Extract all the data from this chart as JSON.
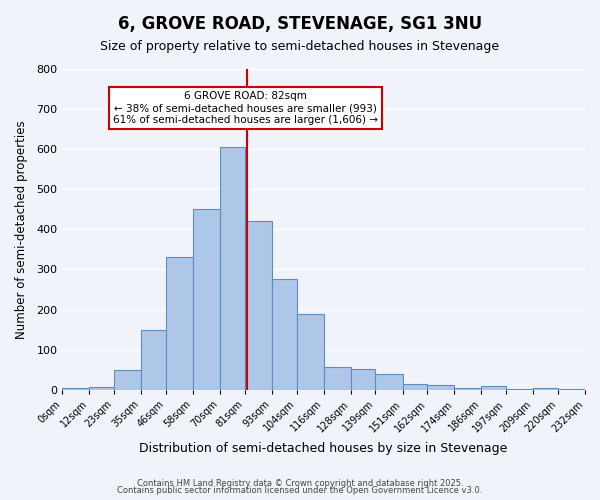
{
  "title": "6, GROVE ROAD, STEVENAGE, SG1 3NU",
  "subtitle": "Size of property relative to semi-detached houses in Stevenage",
  "xlabel": "Distribution of semi-detached houses by size in Stevenage",
  "ylabel": "Number of semi-detached properties",
  "bin_labels": [
    "0sqm",
    "12sqm",
    "23sqm",
    "35sqm",
    "46sqm",
    "58sqm",
    "70sqm",
    "81sqm",
    "93sqm",
    "104sqm",
    "116sqm",
    "128sqm",
    "139sqm",
    "151sqm",
    "162sqm",
    "174sqm",
    "186sqm",
    "197sqm",
    "209sqm",
    "220sqm",
    "232sqm"
  ],
  "bin_edges": [
    0,
    12,
    23,
    35,
    46,
    58,
    70,
    81,
    93,
    104,
    116,
    128,
    139,
    151,
    162,
    174,
    186,
    197,
    209,
    220,
    232
  ],
  "bar_heights": [
    5,
    8,
    50,
    150,
    330,
    450,
    605,
    420,
    275,
    190,
    57,
    52,
    38,
    15,
    12,
    5,
    10,
    3,
    5,
    2
  ],
  "bar_color": "#aec6e8",
  "bar_edge_color": "#5a8fc2",
  "property_value": 82,
  "property_label": "6 GROVE ROAD: 82sqm",
  "annotation_line1": "← 38% of semi-detached houses are smaller (993)",
  "annotation_line2": "61% of semi-detached houses are larger (1,606) →",
  "vline_color": "#cc0000",
  "annotation_box_edge": "#cc0000",
  "ylim": [
    0,
    800
  ],
  "yticks": [
    0,
    100,
    200,
    300,
    400,
    500,
    600,
    700,
    800
  ],
  "footer1": "Contains HM Land Registry data © Crown copyright and database right 2025.",
  "footer2": "Contains public sector information licensed under the Open Government Licence v3.0.",
  "bg_color": "#f0f4fa",
  "grid_color": "#ffffff"
}
